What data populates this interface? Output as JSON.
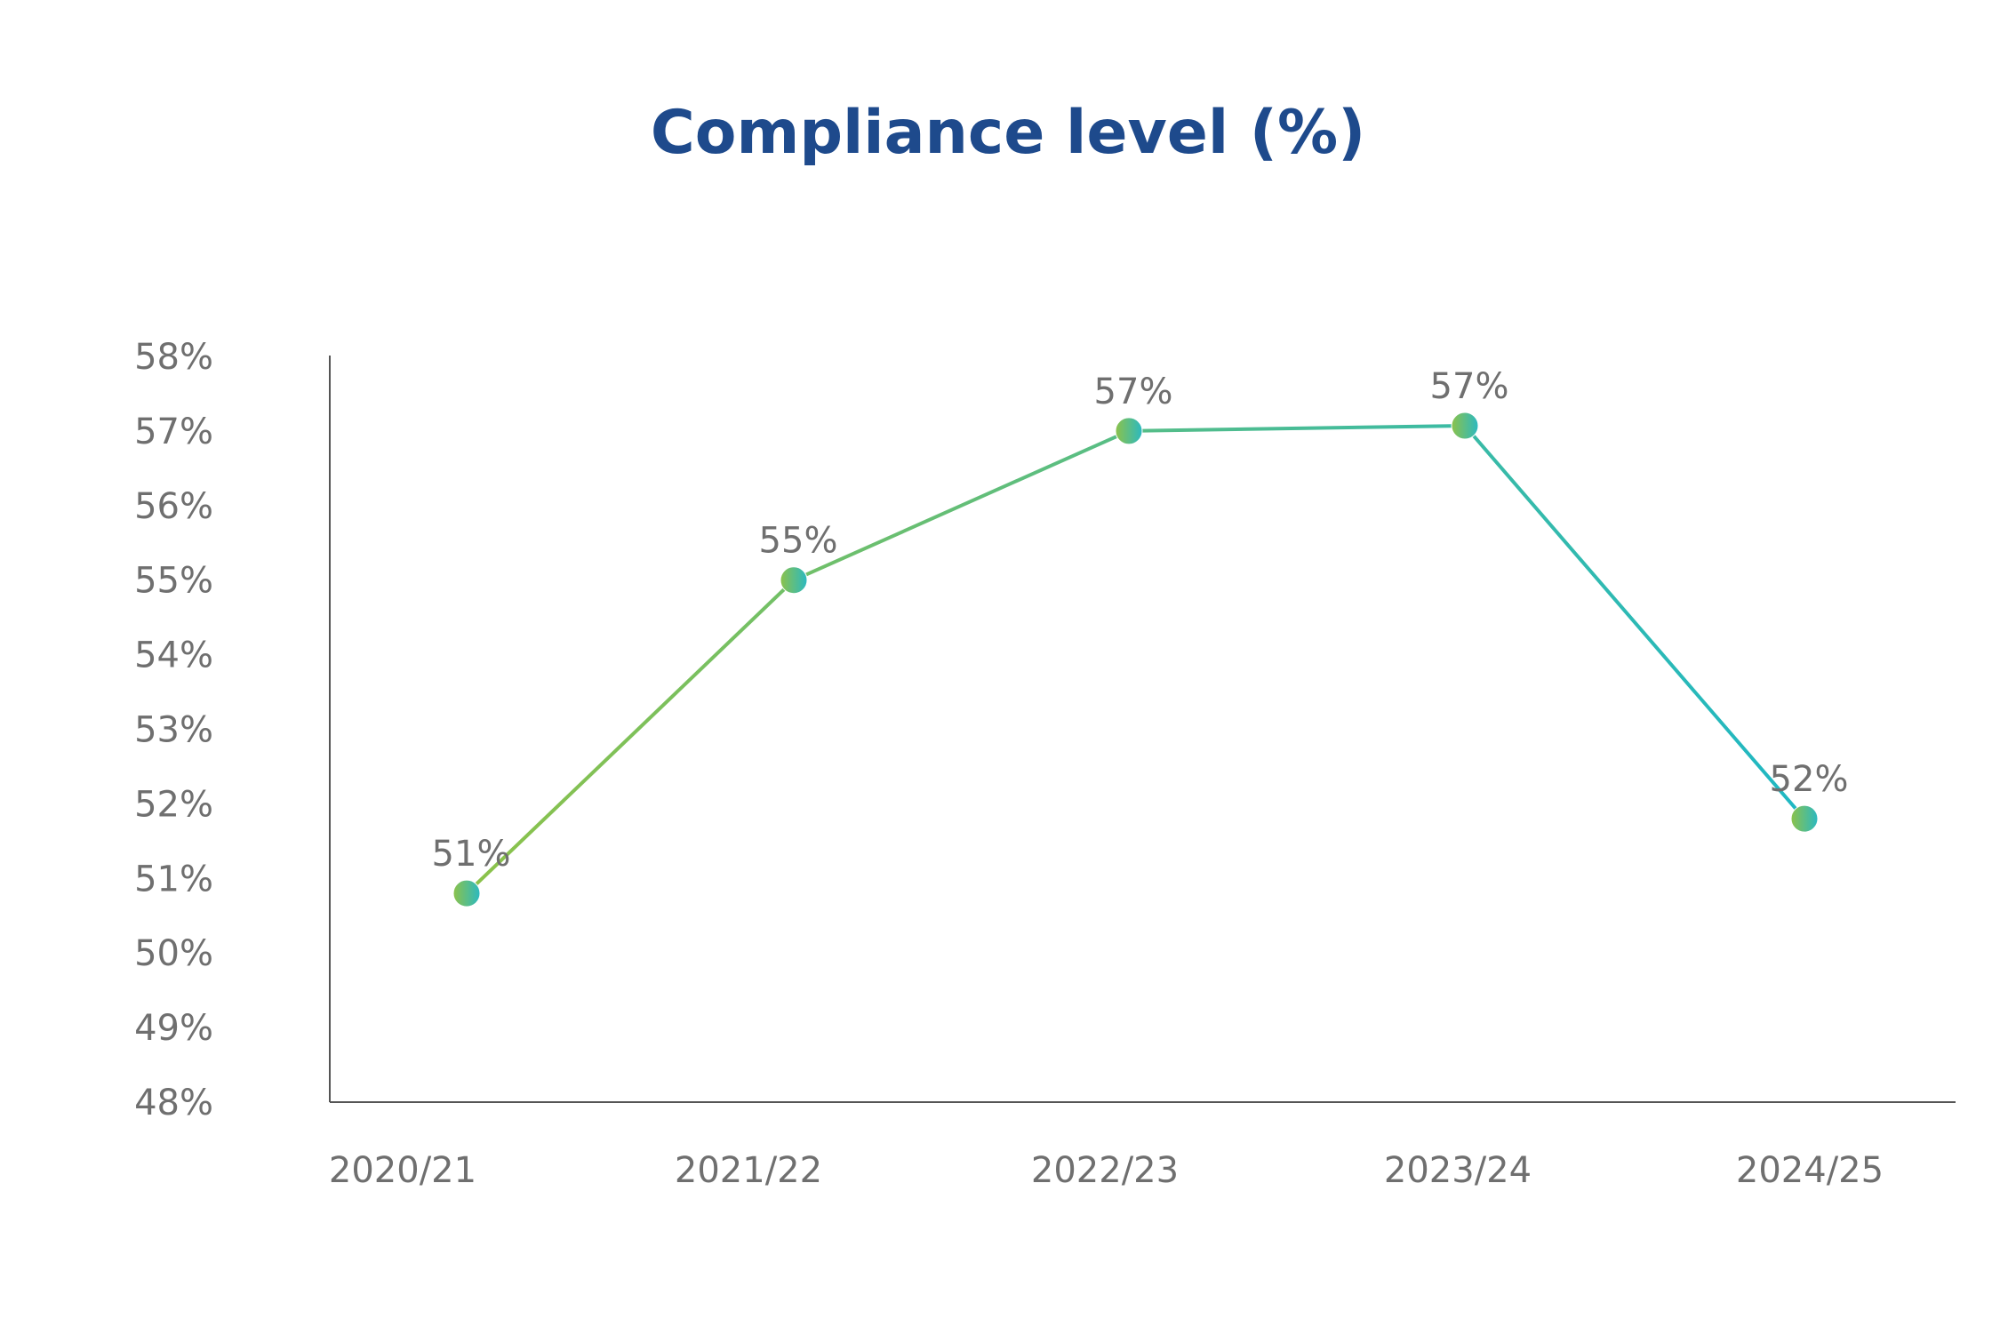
{
  "chart_data": {
    "type": "line",
    "title": "Compliance level (%)",
    "xlabel": "",
    "ylabel": "",
    "categories": [
      "2020/21",
      "2021/22",
      "2022/23",
      "2023/24",
      "2024/25"
    ],
    "series": [
      {
        "values": [
          50.8,
          55.0,
          57.0,
          57.07,
          51.8
        ],
        "data_labels": [
          "51%",
          "55%",
          "57%",
          "57%",
          "52%"
        ]
      }
    ],
    "ylim": [
      48,
      58
    ],
    "yticks": [
      48,
      49,
      50,
      51,
      52,
      53,
      54,
      55,
      56,
      57,
      58
    ],
    "ytick_labels": [
      "48%",
      "49%",
      "50%",
      "51%",
      "52%",
      "53%",
      "54%",
      "55%",
      "56%",
      "57%",
      "58%"
    ],
    "grid": false,
    "legend": "none",
    "colors": {
      "title": "#1e4a8c",
      "line_start": "#8cc24a",
      "line_end": "#1fb8c4",
      "marker_a": "#8cc24a",
      "marker_b": "#2bb9c1",
      "text": "#6f6f6f",
      "axis": "#555555"
    }
  }
}
